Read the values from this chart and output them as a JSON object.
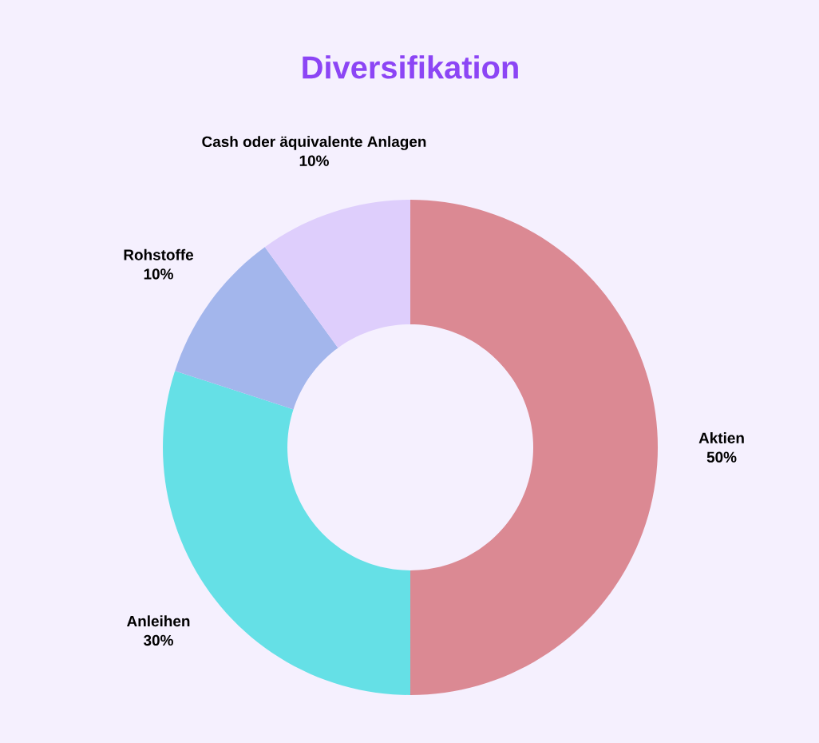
{
  "chart_data": {
    "type": "donut",
    "title": "Diversifikation",
    "categories": [
      "Aktien",
      "Anleihen",
      "Rohstoffe",
      "Cash oder äquivalente Anlagen"
    ],
    "values": [
      50,
      30,
      10,
      10
    ],
    "value_labels": [
      "50%",
      "30%",
      "10%",
      "10%"
    ],
    "colors": [
      "#db8993",
      "#65e0e6",
      "#a3b6ec",
      "#decefc"
    ]
  }
}
